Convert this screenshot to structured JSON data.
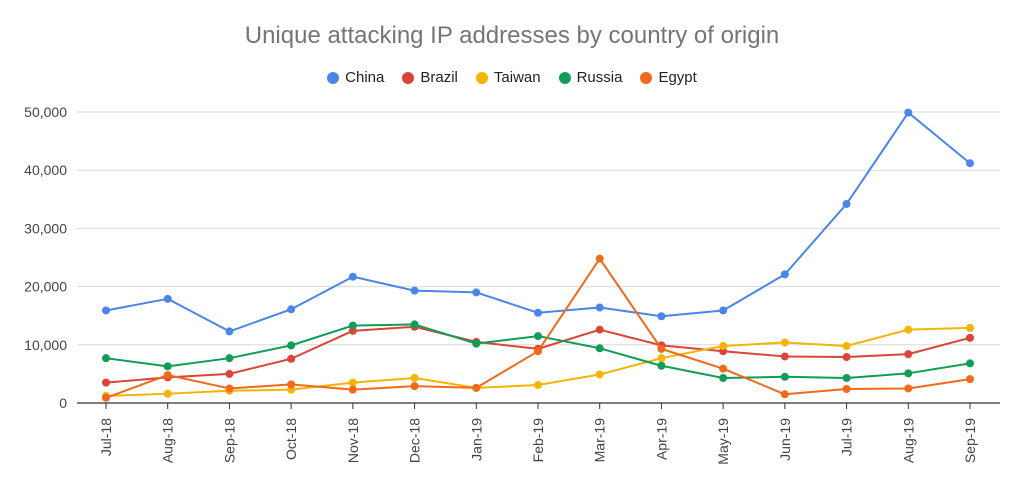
{
  "chart_data": {
    "type": "line",
    "title": "Unique attacking IP addresses by country of origin",
    "xlabel": "",
    "ylabel": "",
    "categories": [
      "Jul-18",
      "Aug-18",
      "Sep-18",
      "Oct-18",
      "Nov-18",
      "Dec-18",
      "Jan-19",
      "Feb-19",
      "Mar-19",
      "Apr-19",
      "May-19",
      "Jun-19",
      "Jul-19",
      "Aug-19",
      "Sep-19"
    ],
    "ylim": [
      0,
      50000
    ],
    "yticks": [
      "0",
      "10,000",
      "20,000",
      "30,000",
      "40,000",
      "50,000"
    ],
    "ytick_values": [
      0,
      10000,
      20000,
      30000,
      40000,
      50000
    ],
    "grid": true,
    "legend_position": "top",
    "series": [
      {
        "name": "China",
        "color": "#4A86E8",
        "values": [
          15900,
          17900,
          12300,
          16100,
          21700,
          19300,
          19000,
          15500,
          16400,
          14900,
          15900,
          22100,
          34200,
          49900,
          41200
        ]
      },
      {
        "name": "Brazil",
        "color": "#DB4437",
        "values": [
          3500,
          4400,
          5000,
          7600,
          12400,
          13100,
          10500,
          9300,
          12600,
          9900,
          8900,
          8000,
          7900,
          8400,
          11200
        ]
      },
      {
        "name": "Taiwan",
        "color": "#F4B400",
        "values": [
          1200,
          1600,
          2100,
          2300,
          3500,
          4300,
          2600,
          3100,
          4900,
          7700,
          9800,
          10400,
          9800,
          12600,
          12900
        ]
      },
      {
        "name": "Russia",
        "color": "#0F9D58",
        "values": [
          7700,
          6300,
          7700,
          9900,
          13300,
          13500,
          10200,
          11500,
          9400,
          6400,
          4300,
          4500,
          4300,
          5100,
          6800
        ]
      },
      {
        "name": "Egypt",
        "color": "#F1691B",
        "values": [
          900,
          4800,
          2500,
          3200,
          2300,
          2900,
          2600,
          8900,
          24800,
          9300,
          5900,
          1500,
          2400,
          2500,
          4100
        ]
      }
    ]
  }
}
